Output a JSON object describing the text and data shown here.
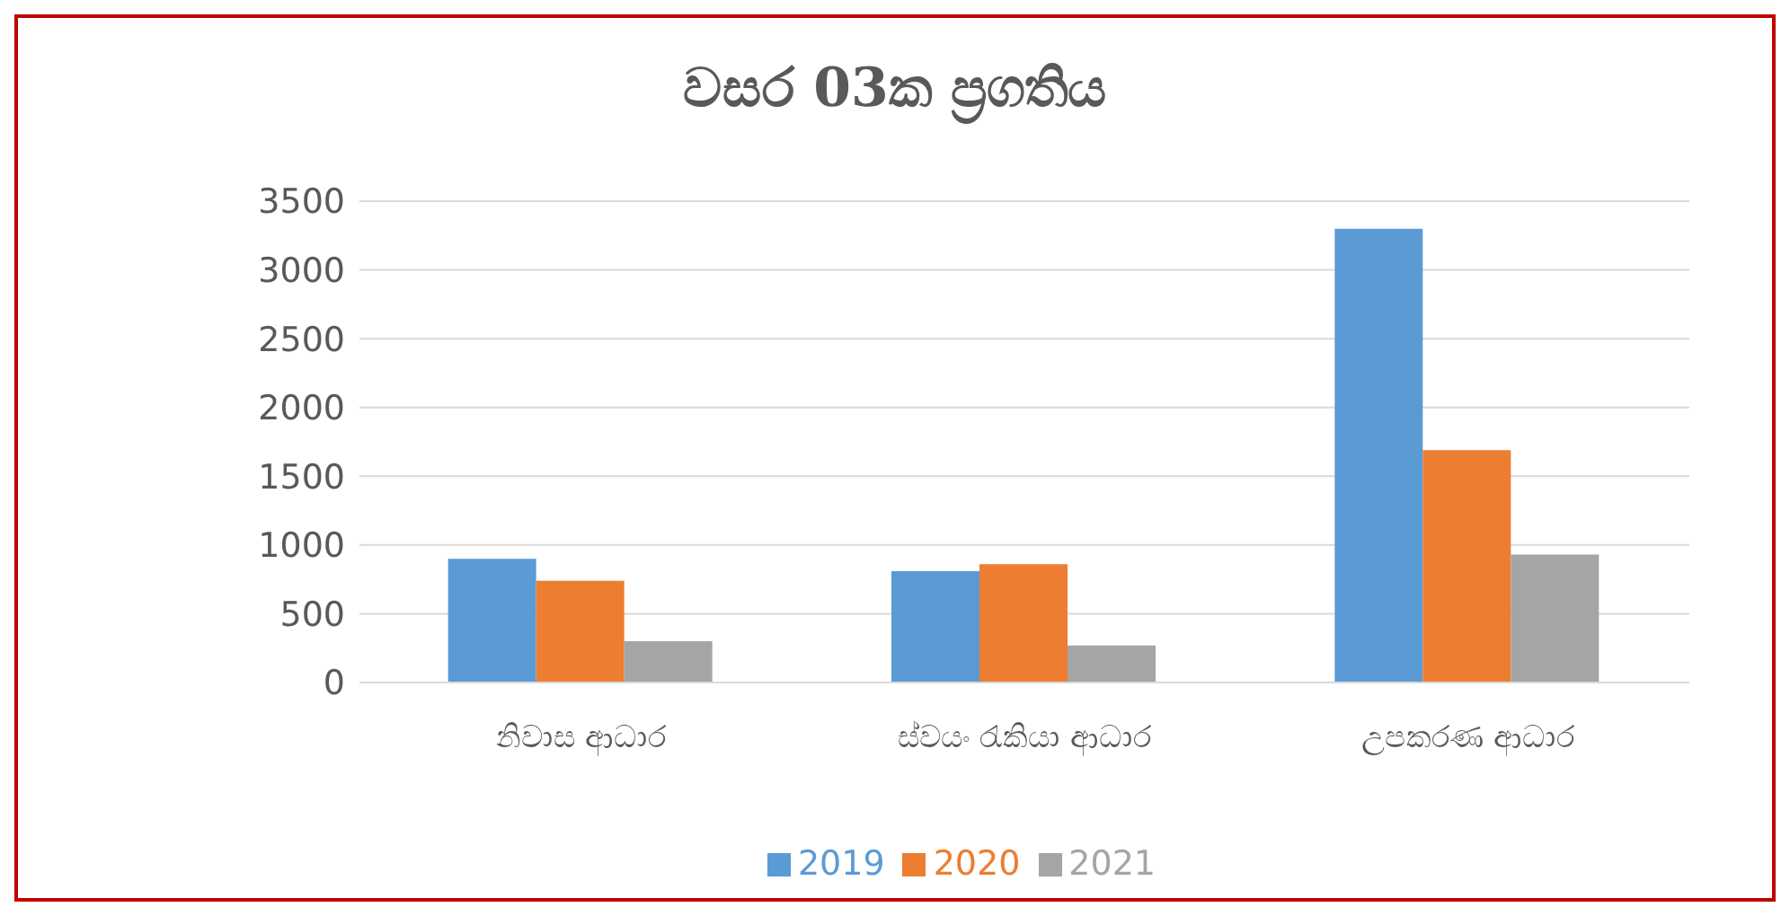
{
  "chart_data": {
    "type": "bar",
    "title": "වසර 03ක ප්‍රගතිය",
    "categories": [
      "නිවාස ආධාර",
      "ස්වයං රැකියා ආධාර",
      "උපකරණ ආධාර"
    ],
    "series": [
      {
        "name": "2019",
        "color": "#5b9bd5",
        "values": [
          900,
          810,
          3300
        ]
      },
      {
        "name": "2020",
        "color": "#ed7d31",
        "values": [
          740,
          860,
          1690
        ]
      },
      {
        "name": "2021",
        "color": "#a5a5a5",
        "values": [
          300,
          270,
          930
        ]
      }
    ],
    "ylim": [
      0,
      3500
    ],
    "yticks": [
      0,
      500,
      1000,
      1500,
      2000,
      2500,
      3000,
      3500
    ],
    "grid": "y",
    "legend": "bottom"
  }
}
